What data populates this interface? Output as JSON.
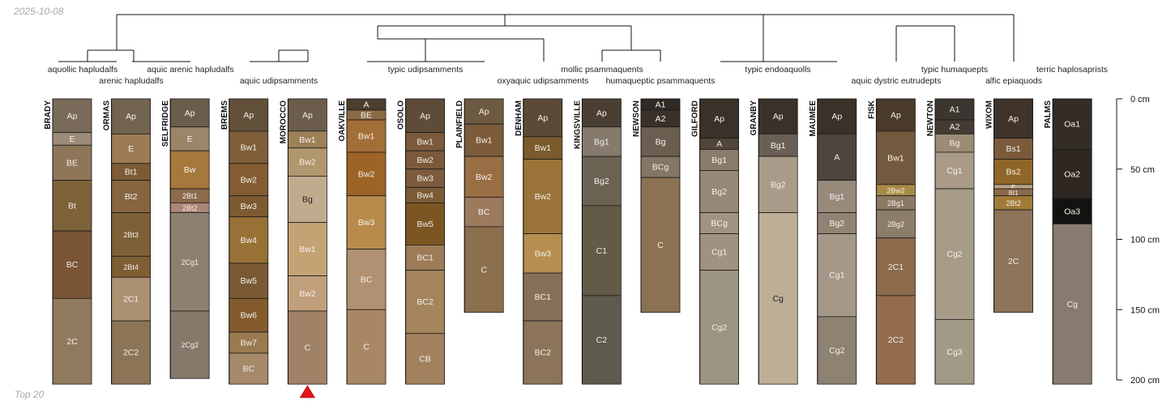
{
  "date_label": "2025-10-08",
  "footer_label": "Top 20",
  "depth_axis": {
    "max_depth_cm": 200,
    "ticks": [
      {
        "depth": 0,
        "label": "0 cm"
      },
      {
        "depth": 50,
        "label": "50 cm"
      },
      {
        "depth": 100,
        "label": "100 cm"
      },
      {
        "depth": 150,
        "label": "150 cm"
      },
      {
        "depth": 200,
        "label": "200 cm"
      }
    ]
  },
  "marker": {
    "profile": "MOROCCO",
    "shape": "triangle",
    "color": "#e8141c"
  },
  "taxa_labels": [
    {
      "text": "aquollic hapludalfs"
    },
    {
      "text": "arenic hapludalfs"
    },
    {
      "text": "aquic arenic hapludalfs"
    },
    {
      "text": "aquic udipsamments"
    },
    {
      "text": "typic udipsamments"
    },
    {
      "text": "mollic psammaquents"
    },
    {
      "text": "oxyaquic udipsamments"
    },
    {
      "text": "humaqueptic psammaquents"
    },
    {
      "text": "typic endoaquolls"
    },
    {
      "text": "aquic dystric eutrudepts"
    },
    {
      "text": "typic humaquepts"
    },
    {
      "text": "alfic epiaquods"
    },
    {
      "text": "terric haplosaprists"
    }
  ],
  "profiles": [
    {
      "name": "BRADY",
      "horizons": [
        {
          "name": "Ap",
          "top": 0,
          "bottom": 24,
          "color": "#7a6a59"
        },
        {
          "name": "E",
          "top": 24,
          "bottom": 33,
          "color": "#9c8b78"
        },
        {
          "name": "BE",
          "top": 33,
          "bottom": 58,
          "color": "#8e7659"
        },
        {
          "name": "Bt",
          "top": 58,
          "bottom": 94,
          "color": "#7e6238"
        },
        {
          "name": "BC",
          "top": 94,
          "bottom": 142,
          "color": "#7a5535"
        },
        {
          "name": "2C",
          "top": 142,
          "bottom": 203,
          "color": "#8f7a5e"
        }
      ]
    },
    {
      "name": "ORMAS",
      "horizons": [
        {
          "name": "Ap",
          "top": 0,
          "bottom": 25,
          "color": "#726250"
        },
        {
          "name": "E",
          "top": 25,
          "bottom": 46,
          "color": "#9c7c55"
        },
        {
          "name": "Bt1",
          "top": 46,
          "bottom": 58,
          "color": "#7c5b35"
        },
        {
          "name": "Bt2",
          "top": 58,
          "bottom": 81,
          "color": "#866540"
        },
        {
          "name": "2Bt3",
          "top": 81,
          "bottom": 112,
          "color": "#7c6038"
        },
        {
          "name": "2Bt4",
          "top": 112,
          "bottom": 127,
          "color": "#7e5e33"
        },
        {
          "name": "2C1",
          "top": 127,
          "bottom": 158,
          "color": "#ab9072"
        },
        {
          "name": "2C2",
          "top": 158,
          "bottom": 203,
          "color": "#8c7457"
        }
      ]
    },
    {
      "name": "SELFRIDGE",
      "horizons": [
        {
          "name": "Ap",
          "top": 0,
          "bottom": 20,
          "color": "#6a5d4b"
        },
        {
          "name": "E",
          "top": 20,
          "bottom": 37,
          "color": "#9b8569"
        },
        {
          "name": "Bw",
          "top": 37,
          "bottom": 64,
          "color": "#a5783c"
        },
        {
          "name": "2Bt1",
          "top": 64,
          "bottom": 74,
          "color": "#8b6b4c"
        },
        {
          "name": "2Bt2",
          "top": 74,
          "bottom": 81,
          "color": "#ab8576"
        },
        {
          "name": "2Cg1",
          "top": 81,
          "bottom": 151,
          "color": "#8e8070"
        },
        {
          "name": "2Cg2",
          "top": 151,
          "bottom": 199,
          "color": "#86786a"
        }
      ]
    },
    {
      "name": "BREMS",
      "horizons": [
        {
          "name": "Ap",
          "top": 0,
          "bottom": 23,
          "color": "#62503a"
        },
        {
          "name": "Bw1",
          "top": 23,
          "bottom": 46,
          "color": "#7e5e38"
        },
        {
          "name": "Bw2",
          "top": 46,
          "bottom": 69,
          "color": "#835d31"
        },
        {
          "name": "Bw3",
          "top": 69,
          "bottom": 84,
          "color": "#7c5b33"
        },
        {
          "name": "Bw4",
          "top": 84,
          "bottom": 117,
          "color": "#977135"
        },
        {
          "name": "Bw5",
          "top": 117,
          "bottom": 142,
          "color": "#7a5a34"
        },
        {
          "name": "Bw6",
          "top": 142,
          "bottom": 166,
          "color": "#835b2e"
        },
        {
          "name": "Bw7",
          "top": 166,
          "bottom": 181,
          "color": "#9a7a50"
        },
        {
          "name": "BC",
          "top": 181,
          "bottom": 203,
          "color": "#a6896a"
        }
      ]
    },
    {
      "name": "MOROCCO",
      "horizons": [
        {
          "name": "Ap",
          "top": 0,
          "bottom": 23,
          "color": "#6c5c4c"
        },
        {
          "name": "Bw1",
          "top": 23,
          "bottom": 35,
          "color": "#9e8058"
        },
        {
          "name": "Bw2",
          "top": 35,
          "bottom": 55,
          "color": "#b0976e"
        },
        {
          "name": "Bg",
          "top": 55,
          "bottom": 88,
          "color": "#c0ab8e"
        },
        {
          "name": "Bw1",
          "top": 88,
          "bottom": 126,
          "color": "#c4a274"
        },
        {
          "name": "Bw2",
          "top": 126,
          "bottom": 151,
          "color": "#c0a07b"
        },
        {
          "name": "C",
          "top": 151,
          "bottom": 203,
          "color": "#a08266"
        }
      ]
    },
    {
      "name": "OAKVILLE",
      "horizons": [
        {
          "name": "A",
          "top": 0,
          "bottom": 8,
          "color": "#4c3d2e"
        },
        {
          "name": "BE",
          "top": 8,
          "bottom": 15,
          "color": "#8b6a45"
        },
        {
          "name": "Bw1",
          "top": 15,
          "bottom": 38,
          "color": "#a36f38"
        },
        {
          "name": "Bw2",
          "top": 38,
          "bottom": 69,
          "color": "#9c6425"
        },
        {
          "name": "Bw3",
          "top": 69,
          "bottom": 107,
          "color": "#b88b4c"
        },
        {
          "name": "BC",
          "top": 107,
          "bottom": 150,
          "color": "#b09272"
        },
        {
          "name": "C",
          "top": 150,
          "bottom": 203,
          "color": "#a88764"
        }
      ]
    },
    {
      "name": "OSOLO",
      "horizons": [
        {
          "name": "Ap",
          "top": 0,
          "bottom": 24,
          "color": "#5e4c38"
        },
        {
          "name": "Bw1",
          "top": 24,
          "bottom": 37,
          "color": "#7a5a3a"
        },
        {
          "name": "Bw2",
          "top": 37,
          "bottom": 50,
          "color": "#7b5a3b"
        },
        {
          "name": "Bw3",
          "top": 50,
          "bottom": 63,
          "color": "#7c5c3d"
        },
        {
          "name": "Bw4",
          "top": 63,
          "bottom": 74,
          "color": "#7d5b37"
        },
        {
          "name": "Bw5",
          "top": 74,
          "bottom": 104,
          "color": "#7b5622"
        },
        {
          "name": "BC1",
          "top": 104,
          "bottom": 122,
          "color": "#9e7c59"
        },
        {
          "name": "BC2",
          "top": 122,
          "bottom": 167,
          "color": "#a5855e"
        },
        {
          "name": "CB",
          "top": 167,
          "bottom": 203,
          "color": "#a2825e"
        }
      ]
    },
    {
      "name": "PLAINFIELD",
      "horizons": [
        {
          "name": "Ap",
          "top": 0,
          "bottom": 18,
          "color": "#6e5a43"
        },
        {
          "name": "Bw1",
          "top": 18,
          "bottom": 41,
          "color": "#7c5b3b"
        },
        {
          "name": "Bw2",
          "top": 41,
          "bottom": 70,
          "color": "#9a6e44"
        },
        {
          "name": "BC",
          "top": 70,
          "bottom": 91,
          "color": "#9c7a5e"
        },
        {
          "name": "C",
          "top": 91,
          "bottom": 152,
          "color": "#8c6f4d"
        }
      ]
    },
    {
      "name": "DENHAM",
      "horizons": [
        {
          "name": "Ap",
          "top": 0,
          "bottom": 27,
          "color": "#5c4a37"
        },
        {
          "name": "Bw1",
          "top": 27,
          "bottom": 43,
          "color": "#7b5a2c"
        },
        {
          "name": "Bw2",
          "top": 43,
          "bottom": 96,
          "color": "#9a7439"
        },
        {
          "name": "Bw3",
          "top": 96,
          "bottom": 124,
          "color": "#b78d50"
        },
        {
          "name": "BC1",
          "top": 124,
          "bottom": 158,
          "color": "#87705a"
        },
        {
          "name": "BC2",
          "top": 158,
          "bottom": 203,
          "color": "#8b7459"
        }
      ]
    },
    {
      "name": "KINGSVILLE",
      "horizons": [
        {
          "name": "Ap",
          "top": 0,
          "bottom": 20,
          "color": "#4a3e33"
        },
        {
          "name": "Bg1",
          "top": 20,
          "bottom": 41,
          "color": "#857a6c"
        },
        {
          "name": "Bg2",
          "top": 41,
          "bottom": 76,
          "color": "#6a6252"
        },
        {
          "name": "C1",
          "top": 76,
          "bottom": 140,
          "color": "#635a48"
        },
        {
          "name": "C2",
          "top": 140,
          "bottom": 203,
          "color": "#5e5a4e"
        }
      ]
    },
    {
      "name": "NEWSON",
      "horizons": [
        {
          "name": "A1",
          "top": 0,
          "bottom": 8,
          "color": "#2f2a25"
        },
        {
          "name": "A2",
          "top": 8,
          "bottom": 20,
          "color": "#3a322a"
        },
        {
          "name": "Bg",
          "top": 20,
          "bottom": 41,
          "color": "#6b5e50"
        },
        {
          "name": "BCg",
          "top": 41,
          "bottom": 56,
          "color": "#847664"
        },
        {
          "name": "C",
          "top": 56,
          "bottom": 152,
          "color": "#8b7252"
        }
      ]
    },
    {
      "name": "GILFORD",
      "horizons": [
        {
          "name": "Ap",
          "top": 0,
          "bottom": 28,
          "color": "#3b3128"
        },
        {
          "name": "A",
          "top": 28,
          "bottom": 36,
          "color": "#514438"
        },
        {
          "name": "Bg1",
          "top": 36,
          "bottom": 51,
          "color": "#8a7c6b"
        },
        {
          "name": "Bg2",
          "top": 51,
          "bottom": 81,
          "color": "#968876"
        },
        {
          "name": "BCg",
          "top": 81,
          "bottom": 96,
          "color": "#a19381"
        },
        {
          "name": "Cg1",
          "top": 96,
          "bottom": 122,
          "color": "#a09280"
        },
        {
          "name": "Cg2",
          "top": 122,
          "bottom": 203,
          "color": "#9d9484"
        }
      ]
    },
    {
      "name": "GRANBY",
      "horizons": [
        {
          "name": "Ap",
          "top": 0,
          "bottom": 25,
          "color": "#3a312a"
        },
        {
          "name": "Bg1",
          "top": 25,
          "bottom": 41,
          "color": "#6a5f55"
        },
        {
          "name": "Bg2",
          "top": 41,
          "bottom": 81,
          "color": "#a89b89"
        },
        {
          "name": "Cg",
          "top": 81,
          "bottom": 203,
          "color": "#bfae96"
        }
      ]
    },
    {
      "name": "MAUMEE",
      "horizons": [
        {
          "name": "Ap",
          "top": 0,
          "bottom": 25,
          "color": "#3b3129"
        },
        {
          "name": "A",
          "top": 25,
          "bottom": 58,
          "color": "#4e453c"
        },
        {
          "name": "Bg1",
          "top": 58,
          "bottom": 81,
          "color": "#978a7b"
        },
        {
          "name": "Bg2",
          "top": 81,
          "bottom": 96,
          "color": "#918373"
        },
        {
          "name": "Cg1",
          "top": 96,
          "bottom": 155,
          "color": "#a59888"
        },
        {
          "name": "Cg2",
          "top": 155,
          "bottom": 203,
          "color": "#8e8272"
        }
      ]
    },
    {
      "name": "FISK",
      "horizons": [
        {
          "name": "Ap",
          "top": 0,
          "bottom": 23,
          "color": "#4a3a2c"
        },
        {
          "name": "Bw1",
          "top": 23,
          "bottom": 61,
          "color": "#735a3e"
        },
        {
          "name": "2Bw2",
          "top": 61,
          "bottom": 69,
          "color": "#a98a45"
        },
        {
          "name": "2Bg1",
          "top": 69,
          "bottom": 79,
          "color": "#8a7a64"
        },
        {
          "name": "2Bg2",
          "top": 79,
          "bottom": 99,
          "color": "#8c7d68"
        },
        {
          "name": "2C1",
          "top": 99,
          "bottom": 140,
          "color": "#8c6a4a"
        },
        {
          "name": "2C2",
          "top": 140,
          "bottom": 203,
          "color": "#946c4c"
        }
      ]
    },
    {
      "name": "NEWTON",
      "horizons": [
        {
          "name": "A1",
          "top": 0,
          "bottom": 15,
          "color": "#3c3630"
        },
        {
          "name": "A2",
          "top": 15,
          "bottom": 25,
          "color": "#443b33"
        },
        {
          "name": "Bg",
          "top": 25,
          "bottom": 38,
          "color": "#9c8c75"
        },
        {
          "name": "Cg1",
          "top": 38,
          "bottom": 64,
          "color": "#a99b88"
        },
        {
          "name": "Cg2",
          "top": 64,
          "bottom": 157,
          "color": "#a69c88"
        },
        {
          "name": "Cg3",
          "top": 157,
          "bottom": 203,
          "color": "#a09a86"
        }
      ]
    },
    {
      "name": "WIXOM",
      "horizons": [
        {
          "name": "Ap",
          "top": 0,
          "bottom": 28,
          "color": "#3f332a"
        },
        {
          "name": "Bs1",
          "top": 28,
          "bottom": 43,
          "color": "#7a5a3a"
        },
        {
          "name": "Bs2",
          "top": 43,
          "bottom": 61,
          "color": "#8f6628"
        },
        {
          "name": "E",
          "top": 61,
          "bottom": 64,
          "color": "#b9a486"
        },
        {
          "name": "Bt1",
          "top": 64,
          "bottom": 69,
          "color": "#8a6a4a"
        },
        {
          "name": "2Bt2",
          "top": 69,
          "bottom": 79,
          "color": "#a27a38"
        },
        {
          "name": "2C",
          "top": 79,
          "bottom": 152,
          "color": "#8c7359"
        }
      ]
    },
    {
      "name": "PALMS",
      "horizons": [
        {
          "name": "Oa1",
          "top": 0,
          "bottom": 36,
          "color": "#342c26"
        },
        {
          "name": "Oa2",
          "top": 36,
          "bottom": 71,
          "color": "#2f2822"
        },
        {
          "name": "Oa3",
          "top": 71,
          "bottom": 89,
          "color": "#141210"
        },
        {
          "name": "Cg",
          "top": 89,
          "bottom": 203,
          "color": "#867b6e"
        }
      ]
    }
  ]
}
